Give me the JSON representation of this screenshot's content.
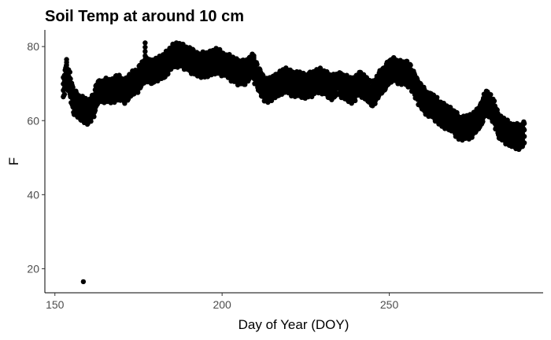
{
  "chart_data": {
    "type": "scatter",
    "title": "Soil Temp at around 10 cm",
    "xlabel": "Day of Year (DOY)",
    "ylabel": "F",
    "xlim": [
      147,
      296
    ],
    "ylim": [
      13.5,
      84.5
    ],
    "x_ticks": [
      150,
      200,
      250
    ],
    "y_ticks": [
      20,
      40,
      60,
      80
    ],
    "grid": false,
    "point_color": "#000000",
    "series": [
      {
        "band_center": [
          [
            152.5,
            69
          ],
          [
            153.5,
            72
          ],
          [
            154.5,
            70
          ],
          [
            155.5,
            65
          ],
          [
            157,
            64
          ],
          [
            158.5,
            63
          ],
          [
            160,
            62
          ],
          [
            161.5,
            64
          ],
          [
            163,
            68
          ],
          [
            165,
            68
          ],
          [
            167,
            68
          ],
          [
            169,
            69
          ],
          [
            171,
            68
          ],
          [
            173,
            70
          ],
          [
            175,
            71
          ],
          [
            177,
            74
          ],
          [
            179,
            73
          ],
          [
            181,
            74
          ],
          [
            183,
            75
          ],
          [
            185,
            77
          ],
          [
            187,
            78
          ],
          [
            189,
            77
          ],
          [
            191,
            76
          ],
          [
            193,
            75
          ],
          [
            195,
            75
          ],
          [
            197,
            76
          ],
          [
            199,
            76
          ],
          [
            201,
            75
          ],
          [
            203,
            74
          ],
          [
            205,
            73
          ],
          [
            207,
            73
          ],
          [
            209,
            75
          ],
          [
            211,
            71
          ],
          [
            213,
            68
          ],
          [
            215,
            69
          ],
          [
            217,
            70
          ],
          [
            219,
            71
          ],
          [
            221,
            70
          ],
          [
            223,
            70
          ],
          [
            225,
            69
          ],
          [
            227,
            70
          ],
          [
            229,
            71
          ],
          [
            231,
            70
          ],
          [
            233,
            69
          ],
          [
            235,
            70
          ],
          [
            237,
            69
          ],
          [
            239,
            68
          ],
          [
            241,
            70
          ],
          [
            243,
            69
          ],
          [
            245,
            67
          ],
          [
            247,
            70
          ],
          [
            249,
            72
          ],
          [
            251,
            74
          ],
          [
            253,
            73
          ],
          [
            255,
            73
          ],
          [
            257,
            71
          ],
          [
            259,
            67
          ],
          [
            261,
            65
          ],
          [
            263,
            64
          ],
          [
            265,
            62
          ],
          [
            267,
            61
          ],
          [
            269,
            60
          ],
          [
            271,
            58
          ],
          [
            273,
            58
          ],
          [
            275,
            59
          ],
          [
            277,
            61
          ],
          [
            279,
            65
          ],
          [
            281,
            63
          ],
          [
            283,
            58
          ],
          [
            285,
            57
          ],
          [
            287,
            56
          ],
          [
            289,
            55.5
          ],
          [
            290.5,
            56.5
          ]
        ],
        "band_halfwidth": 2.2,
        "spikes": [
          [
            153.5,
            76.5
          ],
          [
            177,
            81
          ],
          [
            188,
            80.5
          ],
          [
            209.5,
            77.5
          ],
          [
            251,
            75.5
          ],
          [
            279,
            66
          ],
          [
            159.5,
            59.5
          ],
          [
            245,
            64
          ],
          [
            271,
            55.5
          ],
          [
            288.5,
            54
          ]
        ],
        "outliers": [
          [
            158.5,
            16.5
          ]
        ]
      }
    ]
  }
}
